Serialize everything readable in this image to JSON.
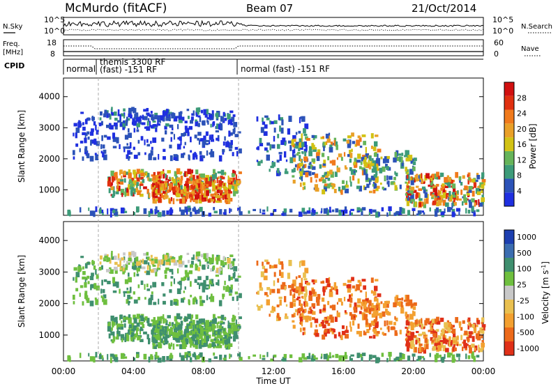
{
  "header": {
    "station": "McMurdo (fitACF)",
    "beam": "Beam 07",
    "date": "21/Oct/2014"
  },
  "colors": {
    "power": [
      "#1f2fe0",
      "#2c53b8",
      "#3d9b79",
      "#66b45a",
      "#d2c214",
      "#e9a028",
      "#f07a1c",
      "#e03010",
      "#d11010"
    ],
    "velocity": [
      "#1d3fb0",
      "#3b6db0",
      "#3f8f6f",
      "#6fbf3f",
      "#c8c8c8",
      "#e9c050",
      "#f3a030",
      "#ec6a1a",
      "#e03018"
    ]
  },
  "chart_data": [
    {
      "type": "line",
      "panel": "N.Sky / N.Search",
      "left_label": "N.Sky",
      "right_label": "N.Search",
      "left_ticks": [
        "10^5",
        "10^0"
      ],
      "right_ticks": [
        "10^5",
        "10^0"
      ],
      "x_range_hours": [
        0,
        24
      ]
    },
    {
      "type": "line",
      "panel": "Freq / Nave",
      "left_label": "Freq.",
      "left_unit": "[MHz]",
      "right_label": "Nave",
      "left_ticks": [
        "18",
        "8"
      ],
      "right_ticks": [
        "60",
        "0"
      ],
      "x_range_hours": [
        0,
        24
      ]
    },
    {
      "type": "table",
      "panel": "CPID",
      "label": "CPID",
      "segments": [
        {
          "start_hour": 0.0,
          "end_hour": 1.8,
          "text": "normal"
        },
        {
          "start_hour": 1.8,
          "end_hour": 9.9,
          "text": "themis 3300 RF",
          "text2": "(fast) -151 RF"
        },
        {
          "start_hour": 9.9,
          "end_hour": 24.0,
          "text": "normal (fast) -151 RF"
        }
      ]
    },
    {
      "type": "heatmap",
      "panel": "Power",
      "ylabel": "Slant Range [km]",
      "y_ticks": [
        1000,
        2000,
        3000,
        4000
      ],
      "ylim": [
        180,
        4600
      ],
      "colorbar_label": "Power [dB]",
      "colorbar_ticks": [
        4,
        8,
        12,
        16,
        20,
        24,
        28
      ],
      "colorbar_range": [
        0,
        32
      ]
    },
    {
      "type": "heatmap",
      "panel": "Velocity",
      "ylabel": "Slant Range [km]",
      "xlabel": "Time UT",
      "x_ticks": [
        "00:00",
        "04:00",
        "08:00",
        "12:00",
        "16:00",
        "20:00",
        "00:00"
      ],
      "y_ticks": [
        1000,
        2000,
        3000,
        4000
      ],
      "ylim": [
        180,
        4600
      ],
      "colorbar_label": "Velocity [m s^-1]",
      "colorbar_ticks": [
        "1000",
        "500",
        "100",
        "25",
        "-25",
        "-100",
        "-500",
        "-1000"
      ]
    }
  ]
}
